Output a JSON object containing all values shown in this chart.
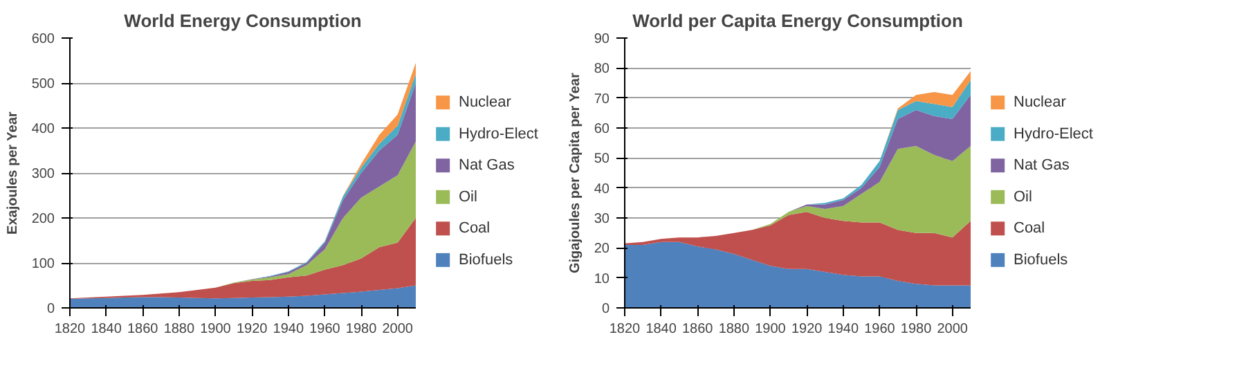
{
  "chart_data": [
    {
      "type": "area",
      "title": "World Energy Consumption",
      "ylabel": "Exajoules per Year",
      "stacked": true,
      "grid": "y",
      "legend": "right",
      "x": [
        1820,
        1830,
        1840,
        1850,
        1860,
        1870,
        1880,
        1890,
        1900,
        1910,
        1920,
        1930,
        1940,
        1950,
        1960,
        1970,
        1980,
        1990,
        2000,
        2010
      ],
      "xlim": [
        1820,
        2010
      ],
      "xticks": [
        1820,
        1840,
        1860,
        1880,
        1900,
        1920,
        1940,
        1960,
        1980,
        2000
      ],
      "ylim": [
        0,
        600
      ],
      "yticks": [
        0,
        100,
        200,
        300,
        400,
        500,
        600
      ],
      "series": [
        {
          "name": "Biofuels",
          "color": "#4f81bd",
          "values": [
            20,
            21,
            22,
            23,
            24,
            24,
            23,
            22,
            21,
            22,
            23,
            24,
            25,
            27,
            30,
            33,
            36,
            40,
            44,
            50
          ]
        },
        {
          "name": "Coal",
          "color": "#c0504d",
          "values": [
            1,
            2,
            3,
            4,
            5,
            8,
            12,
            18,
            24,
            33,
            37,
            38,
            43,
            45,
            55,
            62,
            74,
            95,
            101,
            150
          ]
        },
        {
          "name": "Oil",
          "color": "#9bbb59",
          "values": [
            0,
            0,
            0,
            0,
            0,
            0,
            0,
            0,
            0,
            1,
            3,
            6,
            7,
            23,
            45,
            105,
            135,
            135,
            150,
            170
          ]
        },
        {
          "name": "Nat Gas",
          "color": "#8064a2",
          "values": [
            0,
            0,
            0,
            0,
            0,
            0,
            0,
            0,
            0,
            0,
            1,
            2,
            5,
            5,
            15,
            40,
            55,
            80,
            90,
            130
          ]
        },
        {
          "name": "Hydro-Elect",
          "color": "#4bacc6",
          "values": [
            0,
            0,
            0,
            0,
            0,
            0,
            0,
            0,
            0,
            0,
            0,
            1,
            1,
            2,
            3,
            8,
            12,
            15,
            20,
            20
          ]
        },
        {
          "name": "Nuclear",
          "color": "#f79646",
          "values": [
            0,
            0,
            0,
            0,
            0,
            0,
            0,
            0,
            0,
            0,
            0,
            0,
            0,
            0,
            0,
            1,
            8,
            20,
            25,
            25
          ]
        }
      ]
    },
    {
      "type": "area",
      "title": "World per Capita Energy Consumption",
      "ylabel": "Gigajoules per Capita per Year",
      "stacked": true,
      "grid": "y",
      "legend": "right",
      "x": [
        1820,
        1830,
        1840,
        1850,
        1860,
        1870,
        1880,
        1890,
        1900,
        1910,
        1920,
        1930,
        1940,
        1950,
        1960,
        1970,
        1980,
        1990,
        2000,
        2010
      ],
      "xlim": [
        1820,
        2010
      ],
      "xticks": [
        1820,
        1840,
        1860,
        1880,
        1900,
        1920,
        1940,
        1960,
        1980,
        2000
      ],
      "ylim": [
        0,
        90
      ],
      "yticks": [
        0,
        10,
        20,
        30,
        40,
        50,
        60,
        70,
        80,
        90
      ],
      "series": [
        {
          "name": "Biofuels",
          "color": "#4f81bd",
          "values": [
            21,
            21,
            22,
            22,
            20.5,
            19.5,
            18,
            16,
            14,
            13,
            13,
            12,
            11,
            10.5,
            10.5,
            9,
            8,
            7.5,
            7.5,
            7.5
          ]
        },
        {
          "name": "Coal",
          "color": "#c0504d",
          "values": [
            0.5,
            1,
            1,
            1.5,
            3,
            4.5,
            7,
            10,
            13.5,
            18,
            19,
            18,
            18,
            18,
            18,
            17,
            17,
            17.5,
            16,
            21.5
          ]
        },
        {
          "name": "Oil",
          "color": "#9bbb59",
          "values": [
            0,
            0,
            0,
            0,
            0,
            0,
            0,
            0,
            0.5,
            1,
            2,
            3,
            5,
            9.5,
            13.5,
            27,
            29,
            26,
            25.5,
            25
          ]
        },
        {
          "name": "Nat Gas",
          "color": "#8064a2",
          "values": [
            0,
            0,
            0,
            0,
            0,
            0,
            0,
            0,
            0,
            0,
            0.5,
            1.5,
            2,
            2,
            5,
            10,
            12,
            13,
            14,
            17
          ]
        },
        {
          "name": "Hydro-Elect",
          "color": "#4bacc6",
          "values": [
            0,
            0,
            0,
            0,
            0,
            0,
            0,
            0,
            0,
            0,
            0,
            0.5,
            0.5,
            1,
            2,
            3,
            3,
            4,
            4,
            5
          ]
        },
        {
          "name": "Nuclear",
          "color": "#f79646",
          "values": [
            0,
            0,
            0,
            0,
            0,
            0,
            0,
            0,
            0,
            0,
            0,
            0,
            0,
            0,
            0,
            0.5,
            2,
            4,
            4,
            3
          ]
        }
      ]
    }
  ]
}
